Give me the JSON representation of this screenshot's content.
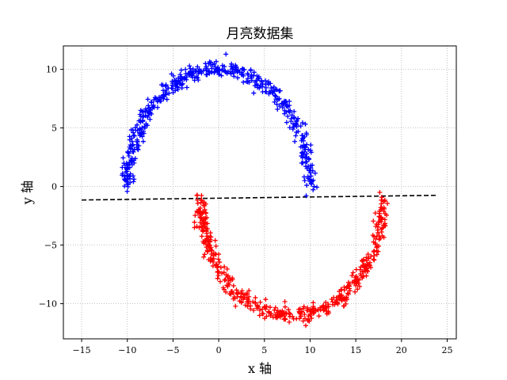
{
  "chart_data": {
    "type": "scatter",
    "title": "月亮数据集",
    "xlabel": "x 轴",
    "ylabel": "y 轴",
    "xlim": [
      -17,
      26
    ],
    "ylim": [
      -13,
      12
    ],
    "x_ticks": [
      -15,
      -10,
      -5,
      0,
      5,
      10,
      15,
      20,
      25
    ],
    "y_ticks": [
      -10,
      -5,
      0,
      5,
      10
    ],
    "grid": true,
    "marker": "+",
    "series": [
      {
        "color": "#0000ff",
        "shape": "upper-arc",
        "center": [
          0,
          0
        ],
        "radius": 10,
        "x_range": [
          -11,
          11
        ],
        "y_range": [
          0,
          11
        ],
        "points_approx": 500
      },
      {
        "color": "#ff0000",
        "shape": "lower-arc",
        "center": [
          8,
          -1
        ],
        "radius": 10,
        "x_range": [
          -3,
          19
        ],
        "y_range": [
          -12,
          -1
        ],
        "points_approx": 500
      }
    ],
    "decision_line": {
      "style": "dashed",
      "color": "#000000",
      "x": [
        -15,
        24
      ],
      "y": [
        -1.15,
        -0.75
      ]
    }
  }
}
